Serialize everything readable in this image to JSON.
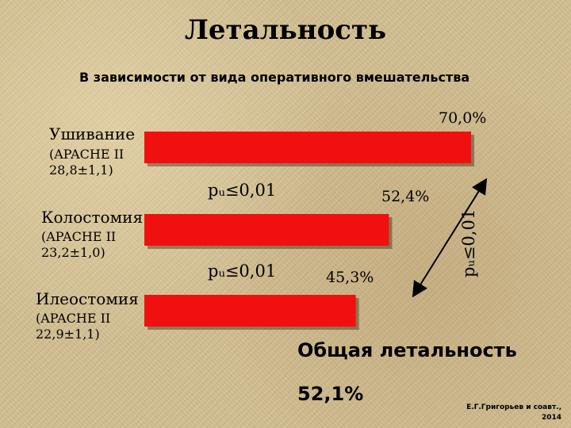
{
  "header": {
    "title": "Летальность",
    "subtitle": "В зависимости от вида оперативного вмешательства"
  },
  "chart_data": {
    "type": "bar",
    "orientation": "horizontal",
    "categories": [
      "Ушивание",
      "Колостомия",
      "Илеостомия"
    ],
    "category_details": [
      "(APACHE II\n28,8±1,1)",
      "(APACHE II\n23,2±1,0)",
      "(APACHE II\n22,9±1,1)"
    ],
    "values": [
      70.0,
      52.4,
      45.3
    ],
    "value_labels": [
      "70,0%",
      "52,4%",
      "45,3%"
    ],
    "xlim": [
      0,
      70
    ],
    "bar_color": "#f01010",
    "grid": false,
    "legend": "none",
    "annotations": {
      "p_between_1_2": "pᵤ≤0,01",
      "p_between_2_3": "pᵤ≤0,01",
      "p_between_1_3": "pᵤ≤0,01"
    }
  },
  "summary": {
    "label": "Общая летальность",
    "value": "52,1%"
  },
  "credit": {
    "line1": "Е.Г.Григорьев и соавт.,",
    "line2": "2014"
  }
}
